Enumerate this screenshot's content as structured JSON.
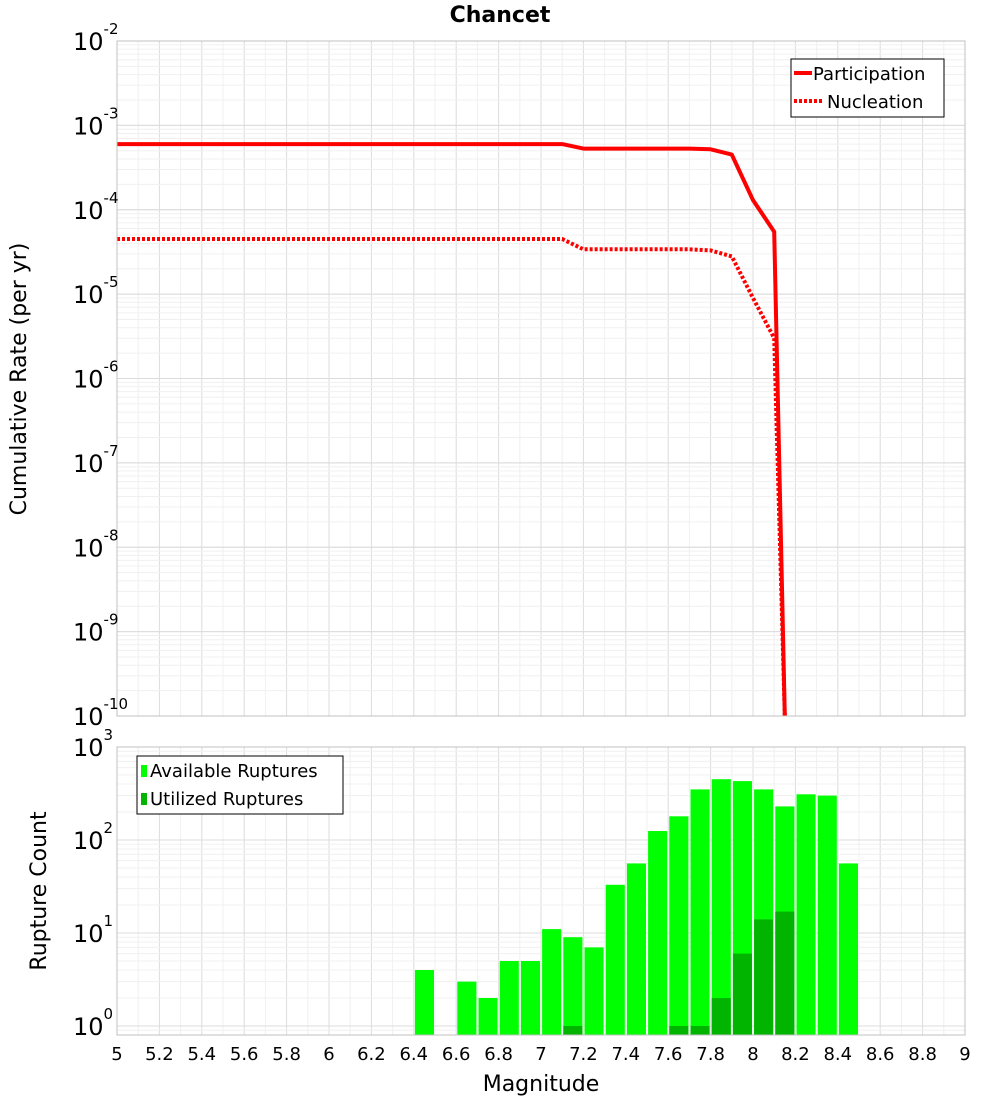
{
  "chart_data": [
    {
      "type": "line",
      "title": "Chancet",
      "xlabel": "",
      "ylabel": "Cumulative Rate (per yr)",
      "xlim": [
        5,
        9
      ],
      "ylim": [
        1e-10,
        0.01
      ],
      "yscale": "log",
      "y_ticks": [
        {
          "base": "10",
          "exp": "-2"
        },
        {
          "base": "10",
          "exp": "-3"
        },
        {
          "base": "10",
          "exp": "-4"
        },
        {
          "base": "10",
          "exp": "-5"
        },
        {
          "base": "10",
          "exp": "-6"
        },
        {
          "base": "10",
          "exp": "-7"
        },
        {
          "base": "10",
          "exp": "-8"
        },
        {
          "base": "10",
          "exp": "-9"
        },
        {
          "base": "10",
          "exp": "-10"
        }
      ],
      "legend_position": "top-right",
      "series": [
        {
          "name": "Participation",
          "color": "#ff0000",
          "style": "solid",
          "x": [
            5.0,
            7.1,
            7.2,
            7.7,
            7.8,
            7.9,
            8.0,
            8.1,
            8.15
          ],
          "y": [
            0.0006,
            0.0006,
            0.00053,
            0.00053,
            0.00052,
            0.00045,
            0.00013,
            5.5e-05,
            1e-10
          ]
        },
        {
          "name": "Nucleation",
          "color": "#ff0000",
          "style": "dotted",
          "x": [
            5.0,
            7.1,
            7.2,
            7.7,
            7.8,
            7.9,
            8.0,
            8.1,
            8.15
          ],
          "y": [
            4.5e-05,
            4.5e-05,
            3.4e-05,
            3.4e-05,
            3.3e-05,
            2.8e-05,
            9e-06,
            3e-06,
            1e-10
          ]
        }
      ]
    },
    {
      "type": "bar",
      "title": "",
      "xlabel": "Magnitude",
      "ylabel": "Rupture Count",
      "xlim": [
        5,
        9
      ],
      "ylim": [
        0.8,
        1000
      ],
      "yscale": "log",
      "bar_width": 0.09,
      "x_ticks": [
        "5",
        "5.2",
        "5.4",
        "5.6",
        "5.8",
        "6",
        "6.2",
        "6.4",
        "6.6",
        "6.8",
        "7",
        "7.2",
        "7.4",
        "7.6",
        "7.8",
        "8",
        "8.2",
        "8.4",
        "8.6",
        "8.8",
        "9"
      ],
      "y_ticks": [
        {
          "base": "10",
          "exp": "3"
        },
        {
          "base": "10",
          "exp": "2"
        },
        {
          "base": "10",
          "exp": "1"
        },
        {
          "base": "10",
          "exp": "0"
        }
      ],
      "legend_position": "top-left",
      "series": [
        {
          "name": "Available Ruptures",
          "color": "#00ff00",
          "x": [
            6.45,
            6.65,
            6.75,
            6.85,
            6.95,
            7.05,
            7.15,
            7.25,
            7.35,
            7.45,
            7.55,
            7.65,
            7.75,
            7.85,
            7.95,
            8.05,
            8.15,
            8.25,
            8.35,
            8.45
          ],
          "values": [
            4,
            3,
            2,
            5,
            5,
            11,
            9,
            7,
            33,
            56,
            125,
            180,
            350,
            450,
            430,
            350,
            230,
            310,
            300,
            56
          ]
        },
        {
          "name": "Utilized Ruptures",
          "color": "#00b400",
          "x": [
            7.15,
            7.65,
            7.75,
            7.85,
            7.95,
            8.05,
            8.15
          ],
          "values": [
            1,
            1,
            1,
            2,
            6,
            14,
            17
          ]
        }
      ]
    }
  ]
}
